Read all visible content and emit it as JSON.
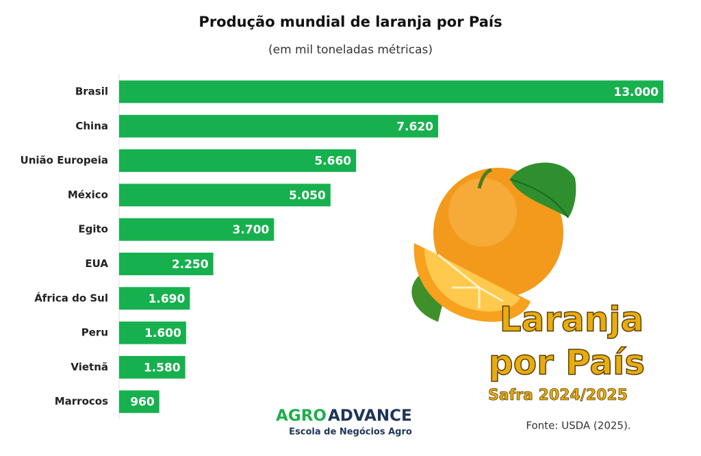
{
  "chart_data": {
    "type": "bar",
    "orientation": "horizontal",
    "title": "Produção mundial de laranja por País",
    "subtitle": "(em mil toneladas métricas)",
    "categories": [
      "Brasil",
      "China",
      "União Europeia",
      "México",
      "Egito",
      "EUA",
      "África do Sul",
      "Peru",
      "Vietnã",
      "Marrocos"
    ],
    "values": [
      13000,
      7620,
      5660,
      5050,
      3700,
      2250,
      1690,
      1600,
      1580,
      960
    ],
    "value_labels": [
      "13.000",
      "7.620",
      "5.660",
      "5.050",
      "3.700",
      "2.250",
      "1.690",
      "1.600",
      "1.580",
      "960"
    ],
    "color": "#17b04e",
    "overlay_title": [
      "Laranja",
      "por País"
    ],
    "overlay_subtitle": "Safra 2024/2025",
    "logo": {
      "left": "AGRO",
      "right": "ADVANCE"
    },
    "logo_tagline": "Escola de Negócios Agro",
    "source": "Fonte: USDA (2025)."
  }
}
